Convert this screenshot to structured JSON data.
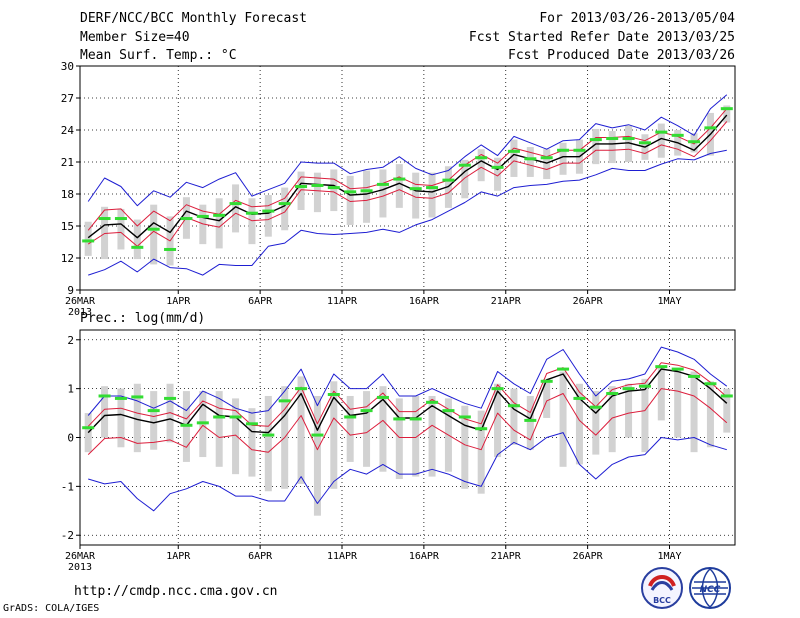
{
  "header": {
    "title": "DERF/NCC/BCC Monthly Forecast",
    "member_size": "Member Size=40",
    "variable": "Mean Surf. Temp.: °C",
    "period": "For 2013/03/26-2013/05/04",
    "fcst_started": "Fcst Started Refer Date 2013/03/25",
    "fcst_produced": "Fcst Produced Date 2013/03/26"
  },
  "footer": {
    "url": "http://cmdp.ncc.cma.gov.cn",
    "credit": "GrADS: COLA/IGES"
  },
  "logos": {
    "bcc": "BCC",
    "ncc": "NCC"
  },
  "colors": {
    "ensemble_mean": "#000000",
    "spread_band": "#dc1e3c",
    "min_max": "#1e1ed2",
    "observed": "#32dc32",
    "member_bars": "#d2d2d2",
    "grid": "#000000"
  },
  "chart_data": [
    {
      "type": "line",
      "title": "Mean Surf. Temp.: °C",
      "ylim": [
        9,
        30
      ],
      "yticks": [
        "9",
        "12",
        "15",
        "18",
        "21",
        "24",
        "27",
        "30"
      ],
      "xticks": [
        "26MAR",
        "1APR",
        "6APR",
        "11APR",
        "16APR",
        "21APR",
        "26APR",
        "1MAY"
      ],
      "xtick_days": [
        0,
        6,
        11,
        16,
        21,
        26,
        31,
        36
      ],
      "xyear": "2013",
      "grid": true,
      "days": 40,
      "series": [
        {
          "name": "ensemble_mean",
          "values": [
            13.9,
            15.1,
            15.2,
            13.9,
            15.3,
            14.4,
            16.4,
            15.8,
            15.5,
            16.8,
            16.1,
            16.2,
            16.9,
            19.0,
            18.9,
            18.8,
            17.9,
            18.0,
            18.4,
            19.0,
            18.3,
            18.2,
            18.7,
            20.1,
            21.1,
            20.3,
            21.7,
            21.3,
            20.9,
            21.5,
            21.5,
            22.7,
            22.7,
            22.8,
            22.4,
            23.2,
            22.8,
            22.1,
            23.6,
            25.4
          ]
        },
        {
          "name": "spread_upper",
          "values": [
            14.6,
            16.5,
            16.6,
            15.0,
            16.4,
            15.5,
            17.0,
            16.4,
            16.1,
            17.4,
            16.8,
            16.9,
            17.6,
            19.6,
            19.5,
            19.4,
            18.5,
            18.6,
            19.0,
            19.6,
            18.9,
            18.8,
            19.3,
            20.7,
            21.7,
            20.9,
            22.3,
            21.9,
            21.5,
            22.1,
            22.1,
            23.3,
            23.3,
            23.4,
            23.0,
            23.8,
            23.4,
            22.7,
            24.2,
            26.0
          ]
        },
        {
          "name": "spread_lower",
          "values": [
            13.3,
            14.3,
            14.4,
            13.1,
            14.5,
            13.6,
            15.8,
            15.2,
            14.9,
            16.2,
            15.5,
            15.6,
            16.3,
            18.4,
            18.3,
            18.2,
            17.3,
            17.4,
            17.8,
            18.4,
            17.7,
            17.6,
            18.1,
            19.5,
            20.5,
            19.7,
            21.1,
            20.7,
            20.3,
            20.9,
            20.9,
            22.1,
            22.1,
            22.2,
            21.8,
            22.6,
            22.2,
            21.5,
            23.0,
            24.8
          ]
        },
        {
          "name": "max",
          "values": [
            17.3,
            19.5,
            18.7,
            16.9,
            18.3,
            17.7,
            19.1,
            18.6,
            19.4,
            20.0,
            17.8,
            18.4,
            19.0,
            21.0,
            20.9,
            20.9,
            19.9,
            20.3,
            20.5,
            21.5,
            20.4,
            19.8,
            20.2,
            21.5,
            22.6,
            21.6,
            23.4,
            22.8,
            22.2,
            23.0,
            23.1,
            24.6,
            24.2,
            24.5,
            24.0,
            25.2,
            24.4,
            23.5,
            26.0,
            27.3
          ]
        },
        {
          "name": "min",
          "values": [
            10.4,
            10.9,
            11.7,
            10.7,
            11.9,
            11.1,
            11.0,
            10.4,
            11.4,
            11.3,
            11.3,
            13.1,
            13.4,
            14.6,
            14.3,
            14.2,
            14.3,
            14.4,
            14.7,
            14.4,
            15.1,
            15.6,
            16.4,
            17.2,
            18.2,
            17.8,
            18.6,
            18.8,
            18.9,
            19.2,
            19.3,
            19.8,
            20.4,
            20.2,
            20.2,
            20.8,
            21.3,
            21.2,
            21.8,
            22.1
          ]
        },
        {
          "name": "observed",
          "values": [
            13.6,
            15.7,
            15.7,
            13.0,
            14.7,
            12.8,
            15.7,
            15.9,
            16.0,
            17.1,
            16.2,
            16.4,
            17.1,
            18.7,
            18.8,
            18.6,
            18.2,
            18.3,
            18.9,
            19.4,
            18.5,
            18.6,
            19.3,
            20.7,
            21.4,
            20.5,
            22.0,
            21.3,
            21.4,
            22.1,
            22.1,
            23.1,
            23.2,
            23.2,
            22.8,
            23.8,
            23.5,
            22.9,
            24.2,
            26.0
          ]
        },
        {
          "name": "member_bar_low",
          "values": [
            12.2,
            11.9,
            12.8,
            11.9,
            11.4,
            11.3,
            13.8,
            13.3,
            12.9,
            14.4,
            13.3,
            14.0,
            14.6,
            16.5,
            16.3,
            16.4,
            15.1,
            15.3,
            15.8,
            16.7,
            15.7,
            15.8,
            16.7,
            17.6,
            19.2,
            18.3,
            19.6,
            19.6,
            19.4,
            19.8,
            19.9,
            20.8,
            20.9,
            21.0,
            21.2,
            21.4,
            21.6,
            21.9,
            21.6,
            24.7
          ]
        },
        {
          "name": "member_bar_high",
          "values": [
            15.4,
            16.8,
            16.6,
            15.6,
            17.0,
            15.9,
            17.7,
            17.0,
            17.6,
            18.9,
            17.6,
            17.9,
            18.6,
            20.1,
            20.0,
            20.3,
            19.7,
            20.2,
            20.3,
            20.8,
            20.0,
            20.0,
            20.6,
            21.2,
            22.2,
            21.4,
            23.1,
            22.4,
            22.2,
            22.8,
            23.1,
            24.1,
            23.9,
            24.4,
            23.6,
            24.6,
            24.0,
            23.7,
            25.6,
            26.3
          ]
        }
      ]
    },
    {
      "type": "line",
      "title": "Prec.: log(mm/d)",
      "ylim": [
        -2.2,
        2.2
      ],
      "yticks": [
        "-2",
        "-1",
        "0",
        "1",
        "2"
      ],
      "xticks": [
        "26MAR",
        "1APR",
        "6APR",
        "11APR",
        "16APR",
        "21APR",
        "26APR",
        "1MAY"
      ],
      "xtick_days": [
        0,
        6,
        11,
        16,
        21,
        26,
        31,
        36
      ],
      "xyear": "2013",
      "grid": true,
      "days": 40,
      "series": [
        {
          "name": "ensemble_mean",
          "values": [
            0.1,
            0.45,
            0.47,
            0.37,
            0.3,
            0.38,
            0.25,
            0.68,
            0.45,
            0.42,
            0.12,
            0.1,
            0.45,
            0.9,
            0.15,
            0.82,
            0.45,
            0.5,
            0.78,
            0.4,
            0.4,
            0.65,
            0.45,
            0.25,
            0.15,
            0.95,
            0.58,
            0.38,
            1.18,
            1.3,
            0.8,
            0.5,
            0.85,
            0.95,
            0.98,
            1.4,
            1.35,
            1.25,
            1.0,
            0.7
          ]
        },
        {
          "name": "spread_upper",
          "values": [
            0.23,
            0.58,
            0.6,
            0.5,
            0.43,
            0.51,
            0.38,
            0.75,
            0.6,
            0.55,
            0.25,
            0.23,
            0.58,
            1.03,
            0.28,
            0.95,
            0.58,
            0.63,
            0.91,
            0.53,
            0.53,
            0.78,
            0.58,
            0.38,
            0.28,
            1.08,
            0.71,
            0.51,
            1.31,
            1.43,
            0.93,
            0.63,
            0.98,
            1.08,
            1.11,
            1.53,
            1.48,
            1.38,
            1.13,
            0.83
          ]
        },
        {
          "name": "spread_lower",
          "values": [
            -0.35,
            -0.02,
            0.0,
            -0.12,
            -0.1,
            -0.05,
            -0.2,
            0.25,
            0.0,
            0.05,
            -0.25,
            -0.3,
            0.0,
            0.45,
            -0.25,
            0.4,
            0.05,
            0.1,
            0.35,
            0.0,
            0.0,
            0.25,
            0.05,
            -0.15,
            -0.25,
            0.5,
            0.15,
            -0.05,
            0.75,
            0.9,
            0.35,
            0.05,
            0.4,
            0.5,
            0.55,
            1.0,
            0.95,
            0.85,
            0.6,
            0.3
          ]
        },
        {
          "name": "max",
          "values": [
            0.45,
            0.85,
            0.85,
            0.75,
            0.6,
            0.75,
            0.55,
            0.95,
            0.8,
            0.6,
            0.5,
            0.55,
            0.95,
            1.4,
            0.65,
            1.3,
            1.0,
            1.0,
            1.3,
            0.85,
            0.85,
            1.0,
            0.85,
            0.7,
            0.6,
            1.35,
            1.1,
            0.9,
            1.6,
            1.8,
            1.3,
            0.85,
            1.15,
            1.2,
            1.3,
            1.85,
            1.75,
            1.6,
            1.3,
            1.05
          ]
        },
        {
          "name": "min",
          "values": [
            -0.85,
            -0.95,
            -0.9,
            -1.25,
            -1.5,
            -1.15,
            -1.05,
            -0.9,
            -1.0,
            -1.2,
            -1.2,
            -1.3,
            -1.3,
            -0.8,
            -1.35,
            -0.9,
            -0.65,
            -0.75,
            -0.55,
            -0.75,
            -0.75,
            -0.65,
            -0.75,
            -0.9,
            -1.0,
            -0.35,
            -0.1,
            -0.25,
            0.0,
            0.1,
            -0.55,
            -0.85,
            -0.55,
            -0.4,
            -0.35,
            0.0,
            -0.05,
            0.0,
            -0.15,
            -0.25
          ]
        },
        {
          "name": "observed",
          "values": [
            0.2,
            0.85,
            0.8,
            0.83,
            0.55,
            0.8,
            0.25,
            0.3,
            0.42,
            0.42,
            0.28,
            0.05,
            0.75,
            1.0,
            0.05,
            0.88,
            0.42,
            0.55,
            0.82,
            0.38,
            0.38,
            0.72,
            0.55,
            0.42,
            0.18,
            1.0,
            0.65,
            0.35,
            1.15,
            1.4,
            0.8,
            0.62,
            0.9,
            1.0,
            1.05,
            1.45,
            1.4,
            1.25,
            1.1,
            0.85
          ]
        },
        {
          "name": "member_bar_low",
          "values": [
            -0.3,
            0.0,
            -0.2,
            -0.3,
            -0.25,
            -0.1,
            -0.5,
            -0.4,
            -0.6,
            -0.75,
            -0.8,
            -1.1,
            -1.05,
            -0.95,
            -1.6,
            -1.05,
            -0.5,
            -0.6,
            -0.7,
            -0.85,
            -0.8,
            -0.8,
            -0.7,
            -1.05,
            -1.15,
            -0.4,
            -0.15,
            -0.25,
            0.4,
            -0.6,
            -0.55,
            -0.35,
            -0.3,
            0.0,
            -0.3,
            0.35,
            0.0,
            -0.3,
            -0.2,
            0.1
          ]
        },
        {
          "name": "member_bar_high",
          "values": [
            0.5,
            1.05,
            1.0,
            1.1,
            0.95,
            1.1,
            0.95,
            0.95,
            0.95,
            0.8,
            0.6,
            0.85,
            1.05,
            1.25,
            0.85,
            1.15,
            0.85,
            0.95,
            1.05,
            0.8,
            0.85,
            0.85,
            0.8,
            0.65,
            0.55,
            1.1,
            1.0,
            0.85,
            1.2,
            1.35,
            1.1,
            0.95,
            1.05,
            1.1,
            1.2,
            1.45,
            1.4,
            1.35,
            1.15,
            1.0
          ]
        }
      ]
    }
  ]
}
